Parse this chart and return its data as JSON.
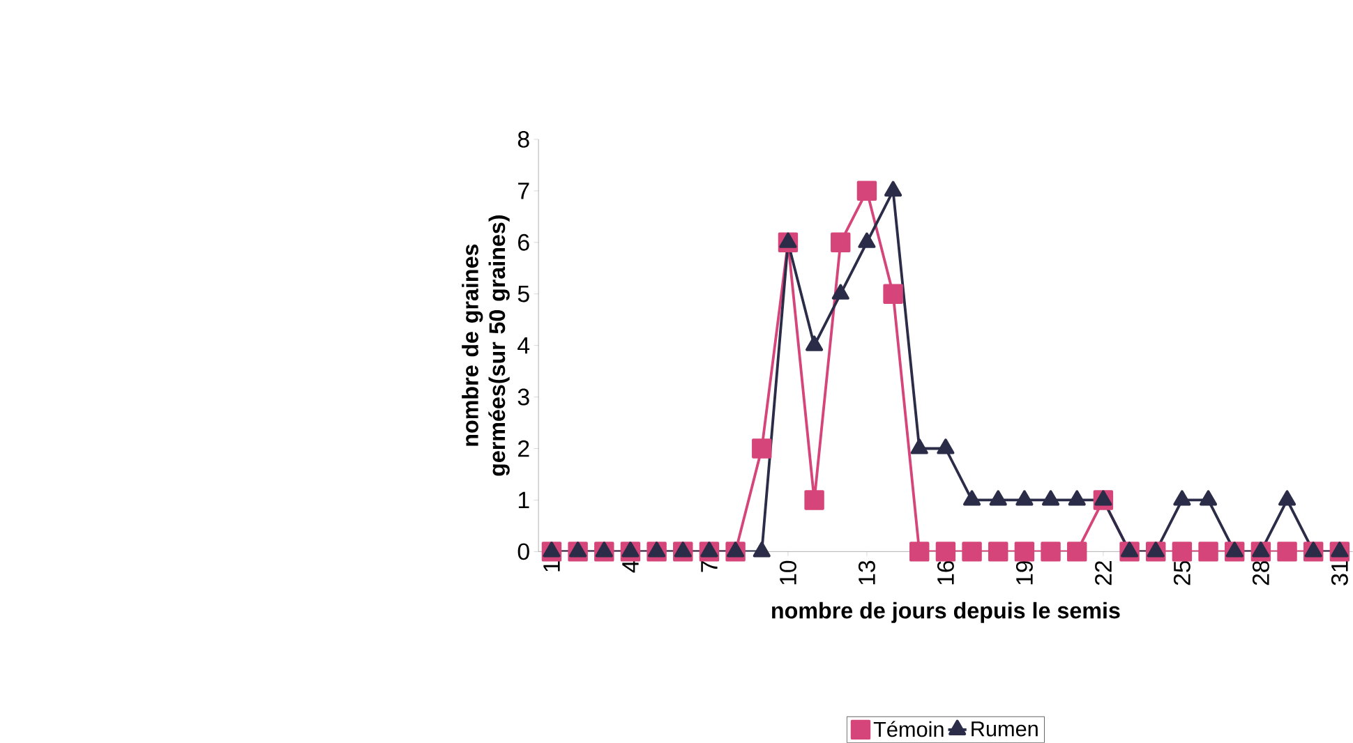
{
  "chart_data": {
    "type": "line",
    "xlabel": "nombre de jours depuis le semis",
    "ylabel": "nombre de graines germées(sur 50 graines)",
    "categories": [
      "1",
      null,
      null,
      "4",
      null,
      null,
      "7",
      null,
      null,
      "10",
      null,
      null,
      "13",
      null,
      null,
      "16",
      null,
      null,
      "19",
      null,
      null,
      "22",
      null,
      null,
      "25",
      null,
      null,
      "28",
      null,
      null,
      "31"
    ],
    "series": [
      {
        "name": "Témoin",
        "color": "#d6457a",
        "marker": "square",
        "values": [
          0,
          0,
          0,
          0,
          0,
          0,
          0,
          0,
          2,
          6,
          1,
          6,
          7,
          5,
          0,
          0,
          0,
          0,
          0,
          0,
          0,
          1,
          0,
          0,
          0,
          0,
          0,
          0,
          0,
          0,
          0
        ]
      },
      {
        "name": "Rumen",
        "color": "#2a2c48",
        "marker": "triangle",
        "values": [
          0,
          0,
          0,
          0,
          0,
          0,
          0,
          0,
          0,
          6,
          4,
          5,
          6,
          7,
          2,
          2,
          1,
          1,
          1,
          1,
          1,
          1,
          0,
          0,
          1,
          1,
          0,
          0,
          1,
          0,
          0
        ]
      }
    ],
    "ylim": [
      0,
      8
    ],
    "yticks": [
      0,
      1,
      2,
      3,
      4,
      5,
      6,
      7,
      8
    ],
    "grid": false,
    "legend": "bottom"
  }
}
